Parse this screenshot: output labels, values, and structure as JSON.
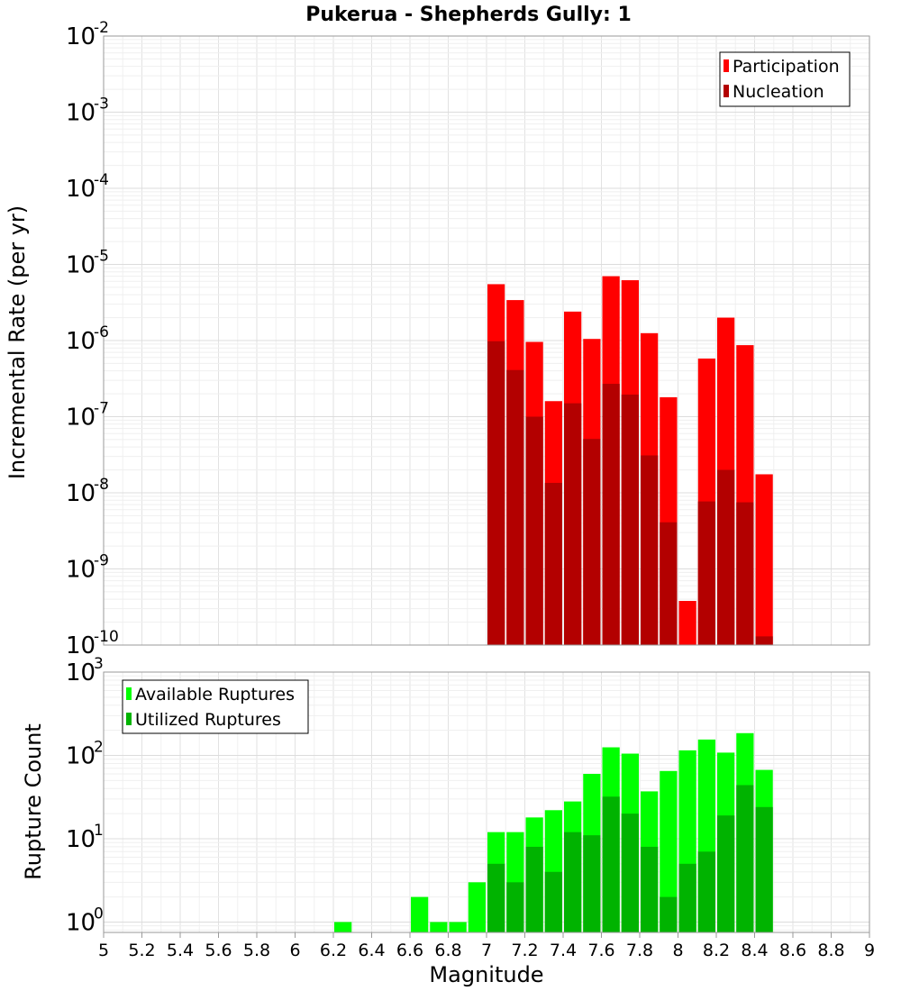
{
  "chart_data": [
    {
      "type": "bar",
      "title": "Pukerua - Shepherds Gully: 1",
      "xlabel": "Magnitude",
      "ylabel": "Incremental Rate (per yr)",
      "yscale": "log",
      "xlim": [
        5,
        9
      ],
      "ylim": [
        1e-10,
        0.01
      ],
      "ytick_exponents": [
        -10,
        -9,
        -8,
        -7,
        -6,
        -5,
        -4,
        -3,
        -2
      ],
      "grid": true,
      "legend_position": "top-right",
      "bar_width": 0.1,
      "x": [
        7.05,
        7.15,
        7.25,
        7.35,
        7.45,
        7.55,
        7.65,
        7.75,
        7.85,
        7.95,
        8.05,
        8.15,
        8.25,
        8.35,
        8.45
      ],
      "series": [
        {
          "name": "Participation",
          "color": "#ff0000",
          "values": [
            5.5e-06,
            3.4e-06,
            9.6e-07,
            1.6e-07,
            2.4e-06,
            1.05e-06,
            7e-06,
            6.2e-06,
            1.25e-06,
            1.8e-07,
            3.8e-10,
            5.8e-07,
            2e-06,
            8.7e-07,
            1.75e-08
          ]
        },
        {
          "name": "Nucleation",
          "color": "#b30000",
          "values": [
            9.8e-07,
            4.1e-07,
            1e-07,
            1.35e-08,
            1.5e-07,
            5.1e-08,
            2.7e-07,
            1.95e-07,
            3.1e-08,
            4.1e-09,
            null,
            7.7e-09,
            2e-08,
            7.5e-09,
            1.3e-10
          ]
        }
      ]
    },
    {
      "type": "bar",
      "xlabel": "Magnitude",
      "ylabel": "Rupture Count",
      "yscale": "log",
      "xlim": [
        5,
        9
      ],
      "ylim": [
        0.75,
        1000
      ],
      "ytick_exponents": [
        0,
        1,
        2,
        3
      ],
      "xticks": [
        "5",
        "5.2",
        "5.4",
        "5.6",
        "5.8",
        "6",
        "6.2",
        "6.4",
        "6.6",
        "6.8",
        "7",
        "7.2",
        "7.4",
        "7.6",
        "7.8",
        "8",
        "8.2",
        "8.4",
        "8.6",
        "8.8",
        "9"
      ],
      "grid": true,
      "legend_position": "top-left",
      "bar_width": 0.1,
      "x": [
        6.25,
        6.65,
        6.75,
        6.85,
        6.95,
        7.05,
        7.15,
        7.25,
        7.35,
        7.45,
        7.55,
        7.65,
        7.75,
        7.85,
        7.95,
        8.05,
        8.15,
        8.25,
        8.35,
        8.45
      ],
      "series": [
        {
          "name": "Available Ruptures",
          "color": "#00ff00",
          "values": [
            1,
            2,
            1,
            1,
            3,
            12,
            12,
            18,
            22,
            28,
            60,
            125,
            105,
            37,
            65,
            115,
            155,
            108,
            185,
            67
          ]
        },
        {
          "name": "Utilized Ruptures",
          "color": "#00b300",
          "values": [
            null,
            null,
            null,
            null,
            null,
            5,
            3,
            8,
            4,
            12,
            11,
            32,
            20,
            8,
            2,
            5,
            7,
            19,
            44,
            24
          ]
        }
      ]
    }
  ]
}
